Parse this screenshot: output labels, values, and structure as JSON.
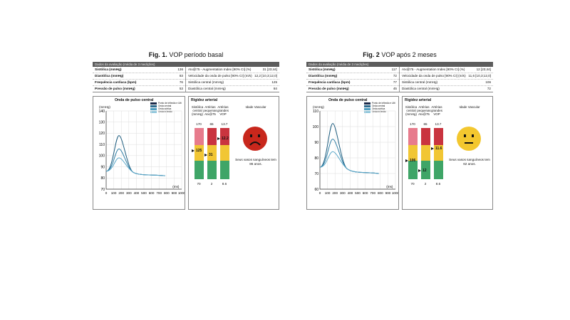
{
  "figures": [
    {
      "caption_strong": "Fig. 1.",
      "caption_text": " VOP período  basal",
      "header": "Dados da avaliação (média de 3 medições)",
      "left_rows": [
        {
          "label": "Sistólica (mmHg)",
          "value": "136"
        },
        {
          "label": "Diastólica (mmHg)",
          "value": "83"
        },
        {
          "label": "Frequência cardíaca (bpm)",
          "value": "76"
        },
        {
          "label": "Pressão de pulso (mmHg)",
          "value": "53"
        }
      ],
      "right_rows": [
        {
          "label": "AIx@75 - Augmentation Index [90% CI] (%)",
          "value": "31 [23;44]"
        },
        {
          "label": "Velocidade da onda de pulso [90% CI] (m/s)",
          "value": "12,2 [10,3;12,0]"
        },
        {
          "label": "Sistólica central (mmHg)",
          "value": "125"
        },
        {
          "label": "Diastólica central (mmHg)",
          "value": "84"
        }
      ],
      "wave_title": "Onda de pulso central",
      "wave_unit": "(mmHg)",
      "legend": [
        "Ponto de inflexão e Ulti",
        "Onda central",
        "Onda aórtica",
        "Onda inflexão"
      ],
      "y_ticks": [
        "140",
        "130",
        "120",
        "110",
        "100",
        "90",
        "80",
        "70"
      ],
      "x_ticks": [
        "0",
        "100",
        "200",
        "300",
        "400",
        "500",
        "600",
        "700",
        "800",
        "900",
        "1000"
      ],
      "x_unit": "(ms)",
      "stiff_title": "Rigidez arterial",
      "col_heads": [
        "Sistólica central (mmHg)",
        "Artérias pequenas AIx@75",
        "Artérias grandes VOP"
      ],
      "vascular_label": "Idade Vascular",
      "top_vals": [
        "170",
        "65",
        "13.7"
      ],
      "bottom_vals": [
        "70",
        "2",
        "8.6"
      ],
      "markers": [
        {
          "value": "125",
          "frac": 0.55
        },
        {
          "value": "31",
          "frac": 0.47
        },
        {
          "value": "12.2",
          "frac": 0.79
        }
      ],
      "face": "sad",
      "face_color": "#c8271c",
      "age_text": "Seus vasos sanguíneos tem 86 anos."
    },
    {
      "caption_strong": "Fig. 2",
      "caption_text": " VOP após 2 meses",
      "header": "Dados da avaliação (média de 3 medições)",
      "left_rows": [
        {
          "label": "Sistólica (mmHg)",
          "value": "117"
        },
        {
          "label": "Diastólica (mmHg)",
          "value": "72"
        },
        {
          "label": "Frequência cardíaca (bpm)",
          "value": "77"
        },
        {
          "label": "Pressão de pulso (mmHg)",
          "value": "45"
        }
      ],
      "right_rows": [
        {
          "label": "AIx@75 - Augmentation Index [90% CI] (%)",
          "value": "12 [23;44]"
        },
        {
          "label": "Velocidade da onda de pulso [90% CI] (m/s)",
          "value": "11,6 [10,3;12,0]"
        },
        {
          "label": "Sistólica central (mmHg)",
          "value": "106"
        },
        {
          "label": "Diastólica central (mmHg)",
          "value": "72"
        }
      ],
      "wave_title": "Onda de pulso central",
      "wave_unit": "(mmHg)",
      "legend": [
        "Ponto de inflexão e Ulti",
        "Onda central",
        "Onda aórtica",
        "Onda inflexão"
      ],
      "y_ticks": [
        "110",
        "100",
        "90",
        "80",
        "70",
        "60"
      ],
      "x_ticks": [
        "0",
        "100",
        "200",
        "300",
        "400",
        "500",
        "600",
        "700",
        "800",
        "900",
        "1000"
      ],
      "x_unit": "(ms)",
      "stiff_title": "Rigidez arterial",
      "col_heads": [
        "Sistólica central (mmHg)",
        "Artérias pequenas AIx@75",
        "Artérias grandes VOP"
      ],
      "vascular_label": "Idade Vascular",
      "top_vals": [
        "170",
        "65",
        "13.7"
      ],
      "bottom_vals": [
        "70",
        "2",
        "8.6"
      ],
      "markers": [
        {
          "value": "106",
          "frac": 0.36
        },
        {
          "value": "12",
          "frac": 0.16
        },
        {
          "value": "11.6",
          "frac": 0.59
        }
      ],
      "face": "neutral",
      "face_color": "#f3c72f",
      "age_text": "Seus vasos sanguíneos tem 62 anos."
    }
  ],
  "colors": {
    "red": "#c9343f",
    "pink": "#e77b8c",
    "yellow": "#f1c634",
    "green": "#3fa567",
    "lightgreen": "#7cc08c",
    "wave": "#1d5c7e"
  }
}
